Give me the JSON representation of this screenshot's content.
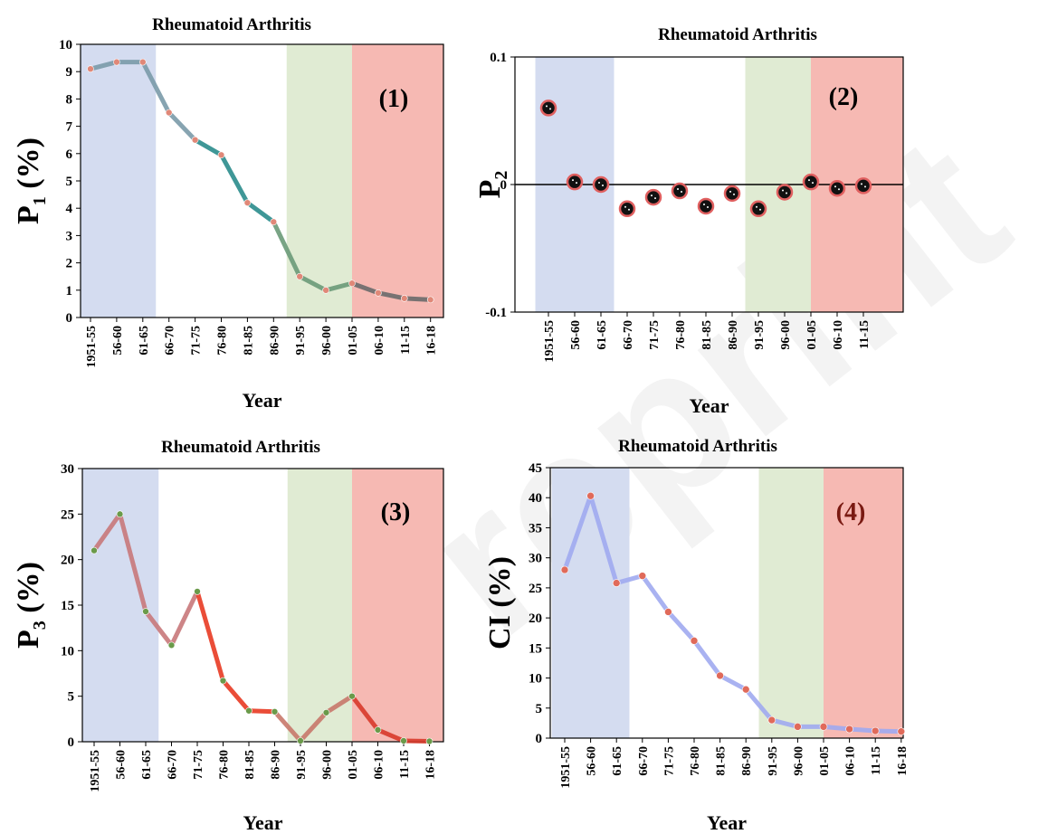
{
  "watermark": {
    "text": "Preprint",
    "color": "#000000"
  },
  "colors": {
    "region1": "#d4dcf0",
    "region2": "#e0ebd3",
    "region3": "#f6b9b3",
    "axis": "#000000"
  },
  "chart_data": [
    {
      "type": "line",
      "title": "Rheumatoid Arthritis",
      "panel_label": "(1)",
      "ylabel_main": "P",
      "ylabel_sub": "1",
      "ylabel_unit": " (%)",
      "xlabel": "Year",
      "categories": [
        "1951-55",
        "56-60",
        "61-65",
        "66-70",
        "71-75",
        "76-80",
        "81-85",
        "86-90",
        "91-95",
        "96-00",
        "01-05",
        "06-10",
        "11-15",
        "16-18"
      ],
      "ylim": [
        0,
        10
      ],
      "yticks": [
        "0",
        "1",
        "2",
        "3",
        "4",
        "5",
        "6",
        "7",
        "8",
        "9",
        "10"
      ],
      "values": [
        9.1,
        9.35,
        9.35,
        7.5,
        6.5,
        5.95,
        4.2,
        3.5,
        1.5,
        1.0,
        1.25,
        0.9,
        0.7,
        0.65
      ],
      "shaded_regions": [
        {
          "from": "1951-55",
          "to": "61-65",
          "color": "#d4dcf0"
        },
        {
          "from": "91-95",
          "to": "01-05",
          "color": "#e0ebd3"
        },
        {
          "from": "01-05",
          "to": "16-18",
          "color": "#f6b9b3"
        }
      ],
      "series_colors": [
        "#7a9aa8",
        "#2a8c8c",
        "#6a9a78",
        "#6a6a6a"
      ],
      "marker_color": "#e08878",
      "grid": false
    },
    {
      "type": "scatter",
      "title": "Rheumatoid Arthritis",
      "panel_label": "(2)",
      "ylabel_main": "P",
      "ylabel_sub": "2",
      "ylabel_unit": "",
      "xlabel": "Year",
      "categories": [
        "1951-55",
        "56-60",
        "61-65",
        "66-70",
        "71-75",
        "76-80",
        "81-85",
        "86-90",
        "91-95",
        "96-00",
        "01-05",
        "06-10",
        "11-15"
      ],
      "ylim": [
        -0.1,
        0.1
      ],
      "yticks": [
        "-0.1",
        "0",
        "0.1"
      ],
      "values": [
        0.06,
        0.002,
        0.0,
        -0.019,
        -0.01,
        -0.005,
        -0.017,
        -0.007,
        -0.019,
        -0.006,
        0.002,
        -0.003,
        -0.001
      ],
      "shaded_regions": [
        {
          "from": "1951-55",
          "to": "61-65",
          "color": "#d4dcf0"
        },
        {
          "from": "91-95",
          "to": "01-05",
          "color": "#e0ebd3"
        },
        {
          "from": "01-05",
          "to": "11-15",
          "color": "#f6b9b3"
        }
      ],
      "marker_color": "#111111",
      "marker_edge": "#e06060",
      "grid": false
    },
    {
      "type": "line",
      "title": "Rheumatoid Arthritis",
      "panel_label": "(3)",
      "ylabel_main": "P",
      "ylabel_sub": "3",
      "ylabel_unit": " (%)",
      "xlabel": "Year",
      "categories": [
        "1951-55",
        "56-60",
        "61-65",
        "66-70",
        "71-75",
        "76-80",
        "81-85",
        "86-90",
        "91-95",
        "96-00",
        "01-05",
        "06-10",
        "11-15",
        "16-18"
      ],
      "ylim": [
        0,
        30
      ],
      "yticks": [
        "0",
        "5",
        "10",
        "15",
        "20",
        "25",
        "30"
      ],
      "values": [
        21.0,
        25.0,
        14.3,
        10.6,
        16.5,
        6.7,
        3.4,
        3.3,
        0.1,
        3.2,
        5.0,
        1.3,
        0.1,
        0.05
      ],
      "shaded_regions": [
        {
          "from": "1951-55",
          "to": "61-65",
          "color": "#d4dcf0"
        },
        {
          "from": "91-95",
          "to": "01-05",
          "color": "#e0ebd3"
        },
        {
          "from": "01-05",
          "to": "16-18",
          "color": "#f6b9b3"
        }
      ],
      "series_colors": [
        "#c8787a",
        "#e83a22",
        "#c8786a",
        "#d83a2a"
      ],
      "marker_color": "#6a9a4a",
      "grid": false
    },
    {
      "type": "line",
      "title": "Rheumatoid Arthritis",
      "panel_label": "(4)",
      "ylabel_main": "CI",
      "ylabel_sub": "",
      "ylabel_unit": " (%)",
      "xlabel": "Year",
      "categories": [
        "1951-55",
        "56-60",
        "61-65",
        "66-70",
        "71-75",
        "76-80",
        "81-85",
        "86-90",
        "91-95",
        "96-00",
        "01-05",
        "06-10",
        "11-15",
        "16-18"
      ],
      "ylim": [
        0,
        45
      ],
      "yticks": [
        "0",
        "5",
        "10",
        "15",
        "20",
        "25",
        "30",
        "35",
        "40",
        "45"
      ],
      "values": [
        28.0,
        40.3,
        25.8,
        27.0,
        21.0,
        16.2,
        10.4,
        8.1,
        3.0,
        1.9,
        1.9,
        1.5,
        1.2,
        1.1
      ],
      "shaded_regions": [
        {
          "from": "1951-55",
          "to": "61-65",
          "color": "#d4dcf0"
        },
        {
          "from": "91-95",
          "to": "01-05",
          "color": "#e0ebd3"
        },
        {
          "from": "01-05",
          "to": "16-18",
          "color": "#f6b9b3"
        }
      ],
      "series_colors": [
        "#a0aaf0"
      ],
      "marker_color": "#e06a5a",
      "grid": false
    }
  ]
}
